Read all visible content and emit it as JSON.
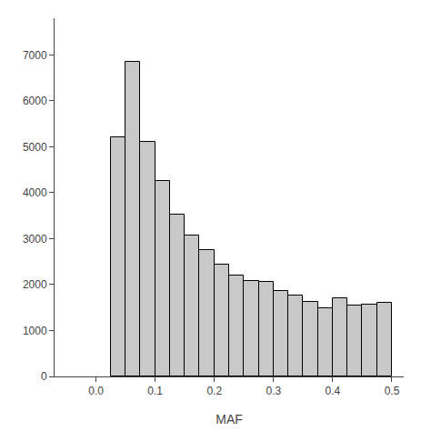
{
  "chart_data": {
    "type": "histogram",
    "xlabel": "MAF",
    "bins": [
      0.025,
      0.05,
      0.075,
      0.1,
      0.125,
      0.15,
      0.175,
      0.2,
      0.225,
      0.25,
      0.275,
      0.3,
      0.325,
      0.35,
      0.375,
      0.4,
      0.425,
      0.45,
      0.475,
      0.5
    ],
    "values": [
      5200,
      6850,
      5100,
      4250,
      3520,
      3070,
      2750,
      2430,
      2200,
      2080,
      2060,
      1870,
      1760,
      1620,
      1490,
      1700,
      1540,
      1560,
      1610
    ],
    "color": "#c8c8c8",
    "xlim": [
      -0.07,
      0.52
    ],
    "ylim": [
      0,
      7800
    ],
    "xticks": [
      {
        "value": 0.0,
        "label": "0.0"
      },
      0.1,
      0.2,
      0.3,
      0.4,
      0.5
    ],
    "yticks": [
      0,
      1000,
      2000,
      3000,
      4000,
      5000,
      6000,
      7000
    ],
    "grid": false
  }
}
